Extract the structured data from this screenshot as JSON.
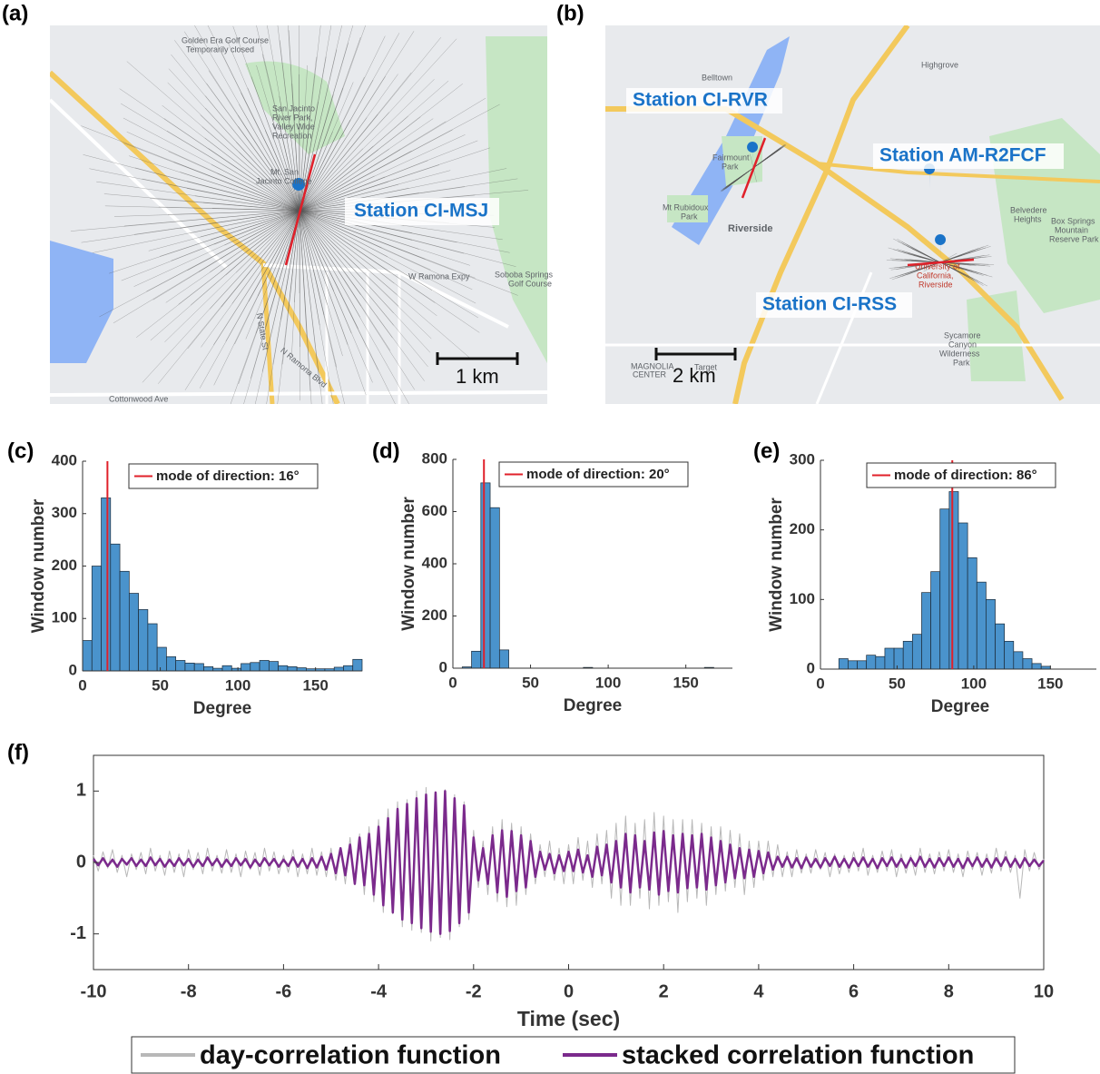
{
  "panels": [
    "(a)",
    "(b)",
    "(c)",
    "(d)",
    "(e)",
    "(f)"
  ],
  "maps": [
    {
      "labels": [
        "Golden Era Golf Course",
        "Temporarily closed",
        "San Jacinto",
        "River Park,",
        "Valley Wide",
        "Recreation",
        "Mt. San",
        "Jacinto College",
        "Soboba Springs",
        "Golf Course",
        "W Ramona Expy",
        "N State St",
        "N Ramona Blvd",
        "Cottonwood Ave"
      ],
      "station_labels": [
        "Station CI-MSJ"
      ],
      "scale_label": "1 km"
    },
    {
      "labels": [
        "Belltown",
        "Highgrove",
        "Fairmount",
        "Park",
        "Mt Rubidoux",
        "Park",
        "Riverside",
        "Belvedere",
        "Heights",
        "Box Springs",
        "Mountain",
        "Reserve Park",
        "University of",
        "California,",
        "Riverside",
        "Sycamore",
        "Canyon",
        "Wilderness",
        "Park",
        "MAGNOLIA",
        "CENTER",
        "Target"
      ],
      "station_labels": [
        "Station CI-RVR",
        "Station AM-R2FCF",
        "Station CI-RSS"
      ],
      "scale_label": "2 km"
    }
  ],
  "chart_data": [
    {
      "type": "histogram",
      "xlabel": "Degree",
      "ylabel": "Window number",
      "color": "#4a93cc",
      "bins": [
        0,
        6,
        12,
        18,
        24,
        30,
        36,
        42,
        48,
        54,
        60,
        66,
        72,
        78,
        84,
        90,
        96,
        102,
        108,
        114,
        120,
        126,
        132,
        138,
        144,
        150,
        156,
        162,
        168,
        174,
        180
      ],
      "values": [
        58,
        200,
        330,
        242,
        190,
        148,
        117,
        90,
        45,
        27,
        20,
        15,
        14,
        8,
        5,
        10,
        5,
        14,
        16,
        20,
        18,
        10,
        8,
        6,
        4,
        4,
        4,
        7,
        10,
        22
      ],
      "mode": 16,
      "mode_color": "#e0202a",
      "legend": "mode of direction: 16°",
      "xlim": [
        0,
        180
      ],
      "ylim": [
        0,
        400
      ],
      "xticks": [
        0,
        50,
        100,
        150
      ],
      "yticks": [
        0,
        100,
        200,
        300,
        400
      ]
    },
    {
      "type": "histogram",
      "xlabel": "Degree",
      "ylabel": "Window number",
      "color": "#4a93cc",
      "bins": [
        0,
        6,
        12,
        18,
        24,
        30,
        36,
        42,
        48,
        54,
        60,
        66,
        72,
        78,
        84,
        90,
        96,
        102,
        108,
        114,
        120,
        126,
        132,
        138,
        144,
        150,
        156,
        162,
        168,
        174,
        180
      ],
      "values": [
        0,
        5,
        65,
        710,
        615,
        70,
        0,
        0,
        0,
        0,
        0,
        0,
        0,
        0,
        3,
        0,
        0,
        0,
        0,
        0,
        0,
        0,
        0,
        0,
        0,
        0,
        0,
        3,
        0,
        0
      ],
      "mode": 20,
      "mode_color": "#e0202a",
      "legend": "mode of direction: 20°",
      "xlim": [
        0,
        180
      ],
      "ylim": [
        0,
        800
      ],
      "xticks": [
        0,
        50,
        100,
        150
      ],
      "yticks": [
        0,
        200,
        400,
        600,
        800
      ]
    },
    {
      "type": "histogram",
      "xlabel": "Degree",
      "ylabel": "Window number",
      "color": "#4a93cc",
      "bins": [
        0,
        6,
        12,
        18,
        24,
        30,
        36,
        42,
        48,
        54,
        60,
        66,
        72,
        78,
        84,
        90,
        96,
        102,
        108,
        114,
        120,
        126,
        132,
        138,
        144,
        150,
        156,
        162,
        168,
        174,
        180
      ],
      "values": [
        0,
        0,
        15,
        12,
        12,
        20,
        18,
        30,
        30,
        40,
        50,
        110,
        140,
        230,
        255,
        210,
        160,
        125,
        100,
        65,
        40,
        25,
        15,
        8,
        4,
        0,
        0,
        0,
        0,
        0
      ],
      "mode": 86,
      "mode_color": "#e0202a",
      "legend": "mode of direction: 86°",
      "xlim": [
        0,
        180
      ],
      "ylim": [
        0,
        300
      ],
      "xticks": [
        0,
        50,
        100,
        150
      ],
      "yticks": [
        0,
        100,
        200,
        300
      ]
    },
    {
      "type": "line",
      "xlabel": "Time (sec)",
      "x": [
        -10,
        -9.9,
        -9.8,
        -9.7,
        -9.6,
        -9.5,
        -9.4,
        -9.3,
        -9.2,
        -9.1,
        -9,
        -8.9,
        -8.8,
        -8.7,
        -8.6,
        -8.5,
        -8.4,
        -8.3,
        -8.2,
        -8.1,
        -8,
        -7.9,
        -7.8,
        -7.7,
        -7.6,
        -7.5,
        -7.4,
        -7.3,
        -7.2,
        -7.1,
        -7,
        -6.9,
        -6.8,
        -6.7,
        -6.6,
        -6.5,
        -6.4,
        -6.3,
        -6.2,
        -6.1,
        -6,
        -5.9,
        -5.8,
        -5.7,
        -5.6,
        -5.5,
        -5.4,
        -5.3,
        -5.2,
        -5.1,
        -5,
        -4.9,
        -4.8,
        -4.7,
        -4.6,
        -4.5,
        -4.4,
        -4.3,
        -4.2,
        -4.1,
        -4,
        -3.9,
        -3.8,
        -3.7,
        -3.6,
        -3.5,
        -3.4,
        -3.3,
        -3.2,
        -3.1,
        -3,
        -2.9,
        -2.8,
        -2.7,
        -2.6,
        -2.5,
        -2.4,
        -2.3,
        -2.2,
        -2.1,
        -2,
        -1.9,
        -1.8,
        -1.7,
        -1.6,
        -1.5,
        -1.4,
        -1.3,
        -1.2,
        -1.1,
        -1,
        -0.9,
        -0.8,
        -0.7,
        -0.6,
        -0.5,
        -0.4,
        -0.3,
        -0.2,
        -0.1,
        0,
        0.1,
        0.2,
        0.3,
        0.4,
        0.5,
        0.6,
        0.7,
        0.8,
        0.9,
        1,
        1.1,
        1.2,
        1.3,
        1.4,
        1.5,
        1.6,
        1.7,
        1.8,
        1.9,
        2,
        2.1,
        2.2,
        2.3,
        2.4,
        2.5,
        2.6,
        2.7,
        2.8,
        2.9,
        3,
        3.1,
        3.2,
        3.3,
        3.4,
        3.5,
        3.6,
        3.7,
        3.8,
        3.9,
        4,
        4.1,
        4.2,
        4.3,
        4.4,
        4.5,
        4.6,
        4.7,
        4.8,
        4.9,
        5,
        5.1,
        5.2,
        5.3,
        5.4,
        5.5,
        5.6,
        5.7,
        5.8,
        5.9,
        6,
        6.1,
        6.2,
        6.3,
        6.4,
        6.5,
        6.6,
        6.7,
        6.8,
        6.9,
        7,
        7.1,
        7.2,
        7.3,
        7.4,
        7.5,
        7.6,
        7.7,
        7.8,
        7.9,
        8,
        8.1,
        8.2,
        8.3,
        8.4,
        8.5,
        8.6,
        8.7,
        8.8,
        8.9,
        9,
        9.1,
        9.2,
        9.3,
        9.4,
        9.5,
        9.6,
        9.7,
        9.8,
        9.9,
        10
      ],
      "series": [
        {
          "name": "day-correlation function",
          "color": "#b8b8b8",
          "values": [
            0.1,
            -0.12,
            0.15,
            -0.08,
            0.18,
            -0.14,
            0.1,
            -0.2,
            0.12,
            -0.1,
            0.14,
            -0.16,
            0.2,
            -0.12,
            0.1,
            -0.18,
            0.16,
            -0.14,
            0.12,
            -0.2,
            0.18,
            -0.1,
            0.14,
            -0.16,
            0.2,
            -0.12,
            0.1,
            -0.15,
            0.18,
            -0.14,
            0.12,
            -0.2,
            0.16,
            -0.1,
            0.14,
            -0.18,
            0.2,
            -0.12,
            0.15,
            -0.16,
            0.1,
            -0.14,
            0.18,
            -0.2,
            0.12,
            -0.16,
            0.2,
            -0.18,
            0.15,
            -0.2,
            0.2,
            -0.25,
            0.18,
            -0.3,
            0.35,
            -0.28,
            0.4,
            -0.45,
            0.5,
            -0.55,
            0.6,
            -0.7,
            0.75,
            -0.72,
            0.85,
            -0.9,
            0.88,
            -0.95,
            1.0,
            -0.98,
            1.05,
            -1.1,
            0.95,
            -1.05,
            1.02,
            -1.08,
            0.95,
            -0.9,
            0.85,
            -0.8,
            0.45,
            -0.35,
            0.3,
            -0.45,
            0.5,
            -0.55,
            0.6,
            -0.62,
            0.55,
            -0.6,
            0.5,
            -0.45,
            0.4,
            -0.3,
            0.25,
            -0.2,
            0.3,
            -0.25,
            0.2,
            -0.3,
            0.25,
            -0.3,
            0.35,
            -0.25,
            0.3,
            -0.35,
            0.4,
            -0.3,
            0.45,
            -0.5,
            0.55,
            -0.6,
            0.65,
            -0.6,
            0.55,
            -0.5,
            0.6,
            -0.65,
            0.7,
            -0.6,
            0.65,
            -0.55,
            0.6,
            -0.7,
            0.6,
            -0.55,
            0.6,
            -0.5,
            0.55,
            -0.6,
            0.5,
            -0.45,
            0.5,
            -0.4,
            0.45,
            -0.35,
            0.4,
            -0.45,
            0.3,
            -0.35,
            0.3,
            -0.25,
            0.3,
            -0.2,
            0.25,
            -0.2,
            0.15,
            -0.2,
            0.18,
            -0.15,
            0.12,
            -0.15,
            0.18,
            -0.1,
            0.14,
            -0.2,
            0.12,
            -0.16,
            0.1,
            -0.14,
            0.15,
            -0.12,
            0.2,
            -0.18,
            0.1,
            -0.14,
            0.16,
            -0.12,
            0.18,
            -0.2,
            0.12,
            -0.15,
            0.1,
            -0.18,
            0.2,
            -0.14,
            0.12,
            -0.16,
            0.15,
            -0.12,
            0.18,
            -0.14,
            0.12,
            -0.2,
            0.16,
            -0.1,
            0.14,
            -0.18,
            0.12,
            -0.15,
            0.2,
            -0.12,
            0.16,
            -0.14,
            0.1,
            -0.5,
            0.18,
            -0.12,
            0.14,
            -0.1,
            0.05
          ]
        },
        {
          "name": "stacked correlation function",
          "color": "#7b2a8c",
          "values": [
            0.05,
            -0.04,
            0.06,
            -0.05,
            0.04,
            -0.06,
            0.05,
            -0.03,
            0.06,
            -0.05,
            0.04,
            -0.05,
            0.07,
            -0.04,
            0.05,
            -0.06,
            0.04,
            -0.05,
            0.06,
            -0.04,
            0.05,
            -0.06,
            0.04,
            -0.05,
            0.07,
            -0.04,
            0.05,
            -0.06,
            0.04,
            -0.05,
            0.06,
            -0.04,
            0.05,
            -0.07,
            0.04,
            -0.05,
            0.06,
            -0.04,
            0.05,
            -0.06,
            0.04,
            -0.05,
            0.07,
            -0.06,
            0.05,
            -0.08,
            0.06,
            -0.07,
            0.08,
            -0.1,
            0.12,
            -0.15,
            0.2,
            -0.18,
            0.25,
            -0.3,
            0.35,
            -0.32,
            0.4,
            -0.45,
            0.5,
            -0.6,
            0.62,
            -0.7,
            0.75,
            -0.8,
            0.82,
            -0.85,
            0.9,
            -0.92,
            0.95,
            -0.97,
            0.98,
            -1.0,
            1.0,
            -0.96,
            0.9,
            -0.85,
            0.8,
            -0.7,
            0.35,
            -0.25,
            0.2,
            -0.3,
            0.38,
            -0.42,
            0.45,
            -0.48,
            0.44,
            -0.4,
            0.38,
            -0.35,
            0.3,
            -0.2,
            0.15,
            -0.1,
            0.12,
            -0.15,
            0.1,
            -0.12,
            0.15,
            -0.12,
            0.18,
            -0.14,
            0.1,
            -0.2,
            0.22,
            -0.18,
            0.25,
            -0.28,
            0.3,
            -0.35,
            0.4,
            -0.42,
            0.38,
            -0.35,
            0.3,
            -0.38,
            0.42,
            -0.45,
            0.44,
            -0.4,
            0.38,
            -0.42,
            0.4,
            -0.36,
            0.38,
            -0.35,
            0.4,
            -0.38,
            0.35,
            -0.32,
            0.3,
            -0.28,
            0.25,
            -0.22,
            0.2,
            -0.22,
            0.18,
            -0.2,
            0.16,
            -0.15,
            0.14,
            -0.1,
            0.08,
            -0.06,
            0.08,
            -0.07,
            0.06,
            -0.08,
            0.07,
            -0.06,
            0.05,
            -0.07,
            0.06,
            -0.05,
            0.08,
            -0.06,
            0.05,
            -0.07,
            0.06,
            -0.05,
            0.07,
            -0.06,
            0.05,
            -0.08,
            0.06,
            -0.05,
            0.07,
            -0.06,
            0.05,
            -0.07,
            0.06,
            -0.05,
            0.08,
            -0.06,
            0.05,
            -0.07,
            0.06,
            -0.05,
            0.07,
            -0.06,
            0.05,
            -0.08,
            0.06,
            -0.05,
            0.07,
            -0.06,
            0.05,
            -0.07,
            0.06,
            -0.05,
            0.07,
            -0.06,
            0.05,
            -0.07,
            0.06,
            -0.05,
            0.04,
            -0.05,
            0.03
          ]
        }
      ],
      "xlim": [
        -10,
        10
      ],
      "ylim": [
        -1.5,
        1.5
      ],
      "xticks": [
        -10,
        -8,
        -6,
        -4,
        -2,
        0,
        2,
        4,
        6,
        8,
        10
      ],
      "yticks": [
        -1,
        0,
        1
      ]
    }
  ]
}
